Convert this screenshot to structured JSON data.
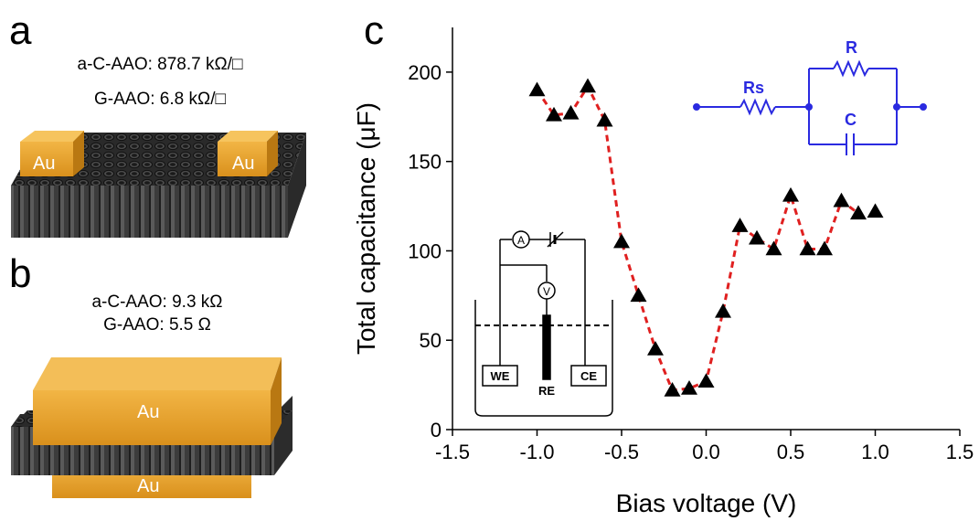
{
  "panels": {
    "a": {
      "letter": "a",
      "line1": "a-C-AAO: 878.7 kΩ/□",
      "line2": "G-AAO: 6.8 kΩ/□",
      "electrode_left": "Au",
      "electrode_right": "Au"
    },
    "b": {
      "letter": "b",
      "line1": "a-C-AAO: 9.3 kΩ",
      "line2": "G-AAO: 5.5 Ω",
      "electrode_top": "Au",
      "electrode_bottom": "Au"
    },
    "c": {
      "letter": "c"
    }
  },
  "colors": {
    "gold": "#e8a32a",
    "membrane": "#3a3a3a",
    "circuit_blue": "#2a2ae0",
    "fit_line": "#e02020"
  },
  "cell_schematic": {
    "ammeter": "A",
    "voltmeter": "V",
    "we": "WE",
    "re": "RE",
    "ce": "CE"
  },
  "circuit": {
    "rs": "Rs",
    "r": "R",
    "c": "C"
  },
  "chart_data": {
    "type": "scatter",
    "xlabel": "Bias voltage (V)",
    "ylabel": "Total capacitance (μF)",
    "xlim": [
      -1.5,
      1.5
    ],
    "ylim": [
      0,
      225
    ],
    "xticks": [
      -1.5,
      -1.0,
      -0.5,
      0.0,
      0.5,
      1.0,
      1.5
    ],
    "xtick_labels": [
      "-1.5",
      "-1.0",
      "-0.5",
      "0.0",
      "0.5",
      "1.0",
      "1.5"
    ],
    "yticks": [
      0,
      50,
      100,
      150,
      200
    ],
    "ytick_labels": [
      "0",
      "50",
      "100",
      "150",
      "200"
    ],
    "marker": "triangle",
    "series": [
      {
        "x": [
          -1.0,
          -0.9,
          -0.8,
          -0.7,
          -0.6,
          -0.5,
          -0.4,
          -0.3,
          -0.2,
          -0.1,
          0.0,
          0.1,
          0.2,
          0.3,
          0.4,
          0.5,
          0.6,
          0.7,
          0.8,
          0.9,
          1.0
        ],
        "y": [
          190,
          176,
          177,
          192,
          173,
          105,
          75,
          45,
          22,
          23,
          27,
          66,
          114,
          107,
          101,
          131,
          101,
          101,
          128,
          121,
          122
        ]
      }
    ],
    "fit_line": {
      "style": "dashed",
      "x": [
        -1.0,
        -0.9,
        -0.8,
        -0.7,
        -0.6,
        -0.5,
        -0.4,
        -0.3,
        -0.2,
        -0.1,
        0.0,
        0.1,
        0.2,
        0.3,
        0.4,
        0.5,
        0.6,
        0.7,
        0.8,
        0.9
      ],
      "y": [
        190,
        176,
        177,
        192,
        173,
        105,
        75,
        45,
        22,
        23,
        27,
        66,
        114,
        107,
        101,
        131,
        101,
        101,
        128,
        121
      ]
    },
    "grid": false,
    "legend": "none"
  }
}
